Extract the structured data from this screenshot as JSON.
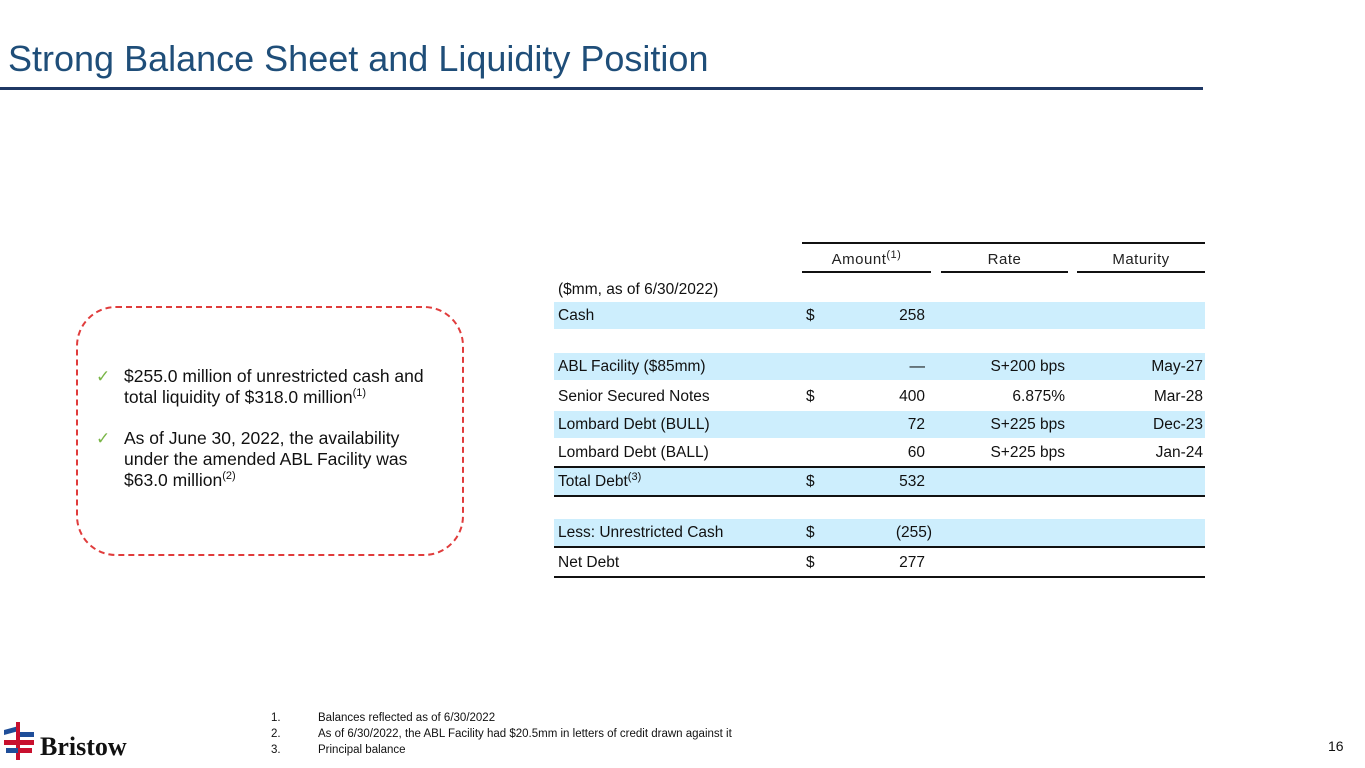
{
  "title": "Strong Balance Sheet and Liquidity Position",
  "bullets": [
    {
      "text": "$255.0 million of unrestricted cash and total liquidity of $318.0 million",
      "sup": "(1)"
    },
    {
      "text": "As of June 30, 2022, the availability under the amended ABL Facility was $63.0 million",
      "sup": "(2)"
    }
  ],
  "table": {
    "headers": {
      "amount": "Amount",
      "amount_sup": "(1)",
      "rate": "Rate",
      "maturity": "Maturity"
    },
    "unit_note": "($mm, as of 6/30/2022)",
    "rows": [
      {
        "label": "Cash",
        "dollar": "$",
        "amount": "258",
        "rate": "",
        "maturity": ""
      },
      {
        "label": "ABL Facility ($85mm)",
        "dollar": "",
        "amount": "—",
        "rate": "S+200 bps",
        "maturity": "May-27"
      },
      {
        "label": "Senior Secured Notes",
        "dollar": "$",
        "amount": "400",
        "rate": "6.875%",
        "maturity": "Mar-28"
      },
      {
        "label": "Lombard Debt (BULL)",
        "dollar": "",
        "amount": "72",
        "rate": "S+225 bps",
        "maturity": "Dec-23"
      },
      {
        "label": "Lombard Debt (BALL)",
        "dollar": "",
        "amount": "60",
        "rate": "S+225 bps",
        "maturity": "Jan-24"
      },
      {
        "label": "Total Debt",
        "sup": "(3)",
        "dollar": "$",
        "amount": "532",
        "rate": "",
        "maturity": ""
      },
      {
        "label": "Less: Unrestricted Cash",
        "dollar": "$",
        "amount": "(255)",
        "rate": "",
        "maturity": ""
      },
      {
        "label": "Net Debt",
        "dollar": "$",
        "amount": "277",
        "rate": "",
        "maturity": ""
      }
    ]
  },
  "footnotes": [
    {
      "n": "1.",
      "text": "Balances reflected as of 6/30/2022"
    },
    {
      "n": "2.",
      "text": "As of 6/30/2022, the ABL Facility had $20.5mm in letters of credit drawn against it"
    },
    {
      "n": "3.",
      "text": "Principal balance"
    }
  ],
  "logo": "Bristow",
  "page_number": "16",
  "colors": {
    "title": "#1f4e79",
    "shade": "#cdeefd",
    "dash": "#e03c3c",
    "check": "#7ab648"
  }
}
